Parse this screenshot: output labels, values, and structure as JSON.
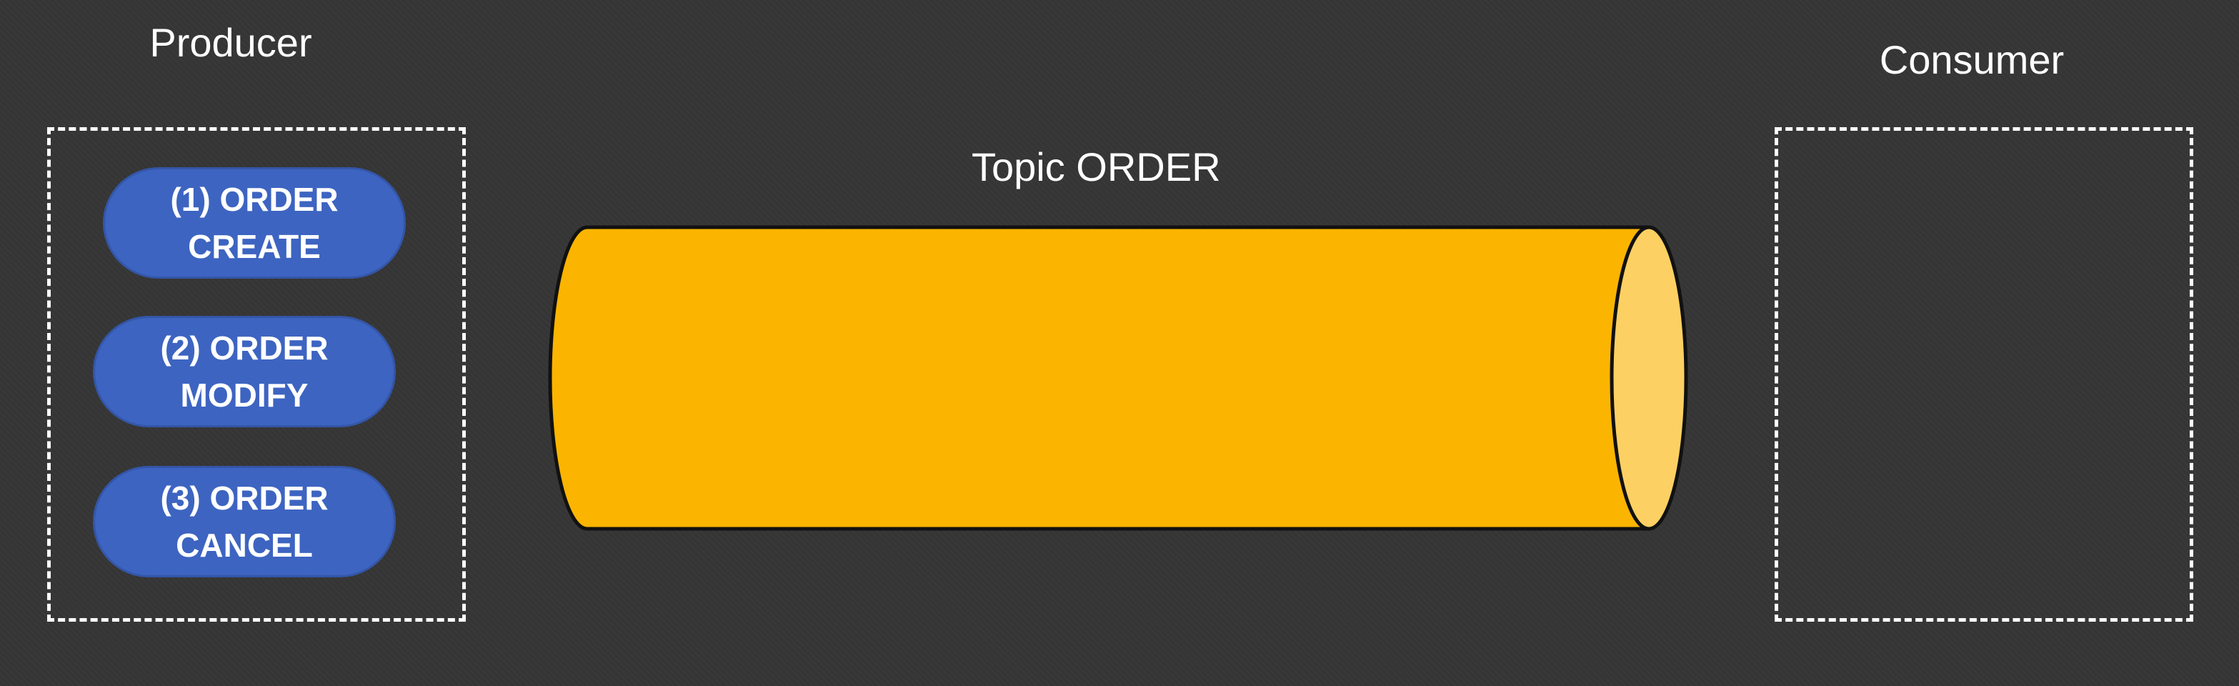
{
  "producer": {
    "title": "Producer",
    "messages": [
      {
        "label": "(1) ORDER\nCREATE"
      },
      {
        "label": "(2) ORDER\nMODIFY"
      },
      {
        "label": "(3) ORDER\nCANCEL"
      }
    ]
  },
  "topic": {
    "title": "Topic ORDER"
  },
  "consumer": {
    "title": "Consumer"
  },
  "colors": {
    "background": "#353535",
    "message_fill": "#3d64c1",
    "topic_body": "#fbb500",
    "topic_end": "#fdd063"
  }
}
